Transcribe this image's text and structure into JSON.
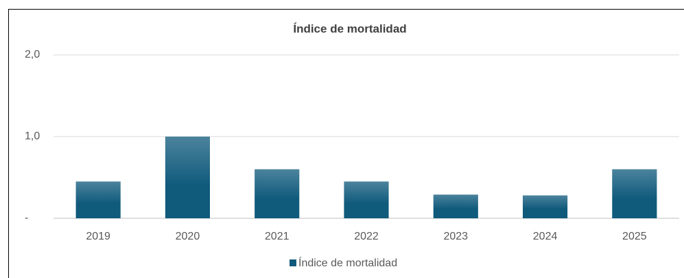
{
  "chart_data": {
    "type": "bar",
    "title": "Índice de mortalidad",
    "categories": [
      "2019",
      "2020",
      "2021",
      "2022",
      "2023",
      "2024",
      "2025"
    ],
    "series": [
      {
        "name": "Índice de mortalidad",
        "color": "#105a7c",
        "values": [
          0.45,
          1.0,
          0.6,
          0.45,
          0.29,
          0.28,
          0.6
        ]
      }
    ],
    "ylim": [
      0,
      2
    ],
    "yticks": [
      {
        "value": 0,
        "label": "-"
      },
      {
        "value": 1,
        "label": "1,0"
      },
      {
        "value": 2,
        "label": "2,0"
      }
    ],
    "grid": true,
    "legend": "bottom"
  }
}
